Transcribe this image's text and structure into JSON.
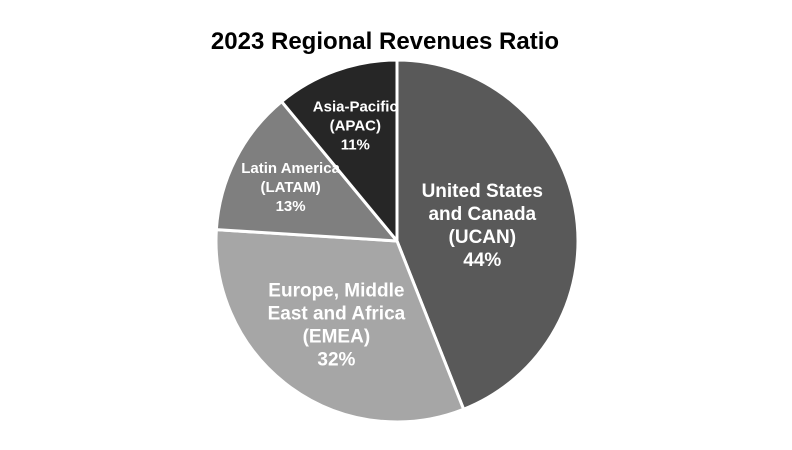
{
  "chart_data": {
    "type": "pie",
    "title": "2023 Regional Revenues Ratio",
    "start_angle_deg": 90,
    "direction": "clockwise",
    "slices": [
      {
        "label_lines": [
          "United States",
          "and Canada",
          "(UCAN)"
        ],
        "percent_label": "44%",
        "value": 44,
        "color": "#595959"
      },
      {
        "label_lines": [
          "Europe, Middle",
          "East and Africa",
          "(EMEA)"
        ],
        "percent_label": "32%",
        "value": 32,
        "color": "#a6a6a6"
      },
      {
        "label_lines": [
          "Latin America",
          "(LATAM)"
        ],
        "percent_label": "13%",
        "value": 13,
        "color": "#7f7f7f"
      },
      {
        "label_lines": [
          "Asia-Pacific",
          "(APAC)"
        ],
        "percent_label": "11%",
        "value": 11,
        "color": "#262626"
      }
    ],
    "legend": "none",
    "slice_border_color": "#ffffff"
  }
}
